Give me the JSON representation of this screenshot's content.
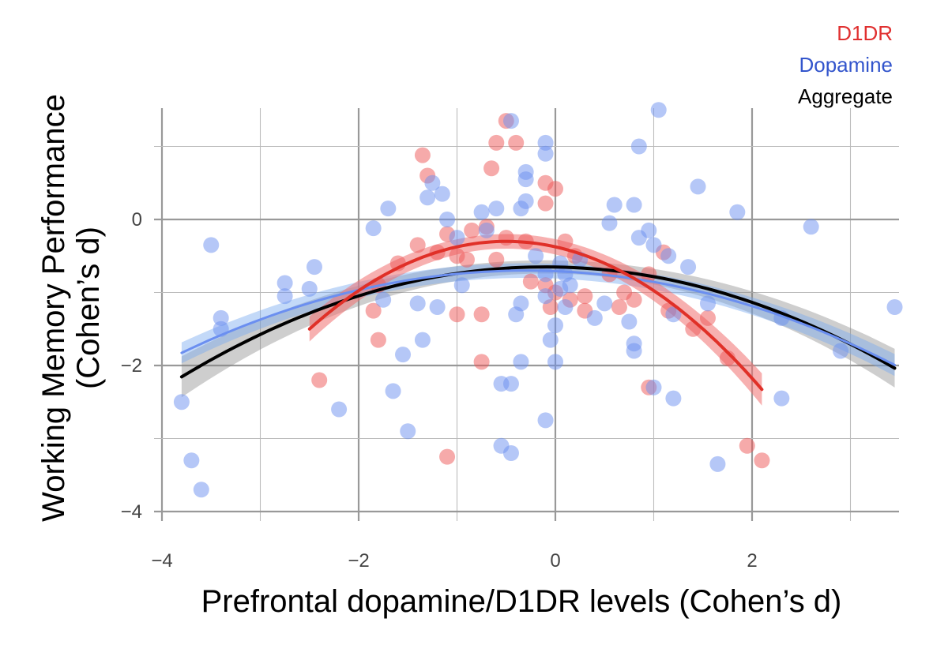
{
  "chart_data": {
    "type": "scatter",
    "title": "",
    "xlabel": "Prefrontal dopamine/D1DR levels (Cohen’s d)",
    "ylabel": [
      "Working Memory Performance",
      "(Cohen’s d)"
    ],
    "xlim": [
      -4,
      3.5
    ],
    "ylim": [
      -4.2,
      1.5
    ],
    "xticks": [
      -4,
      -2,
      0,
      2
    ],
    "xtick_labels": [
      "−4",
      "−2",
      "0",
      "2"
    ],
    "yticks": [
      0,
      -2,
      -4
    ],
    "ytick_labels": [
      "0",
      "−2",
      "−4"
    ],
    "grid": true,
    "legend_position": "top-right",
    "legend": [
      "D1DR",
      "Dopamine",
      "Aggregate"
    ],
    "colors": {
      "D1DR": "#e03030",
      "Dopamine": "#6b8ff0",
      "Aggregate": "#000000"
    },
    "series": [
      {
        "name": "D1DR",
        "kind": "points",
        "points": [
          [
            -0.5,
            1.35
          ],
          [
            -0.6,
            1.05
          ],
          [
            -0.4,
            1.05
          ],
          [
            -0.65,
            0.7
          ],
          [
            -1.35,
            0.88
          ],
          [
            -0.1,
            0.5
          ],
          [
            0,
            0.42
          ],
          [
            -0.1,
            0.22
          ],
          [
            -1.3,
            0.6
          ],
          [
            -0.7,
            -0.1
          ],
          [
            -0.85,
            -0.15
          ],
          [
            -1.1,
            -0.2
          ],
          [
            -0.5,
            -0.25
          ],
          [
            -1.4,
            -0.35
          ],
          [
            -1.2,
            -0.45
          ],
          [
            -0.3,
            -0.3
          ],
          [
            -0.6,
            -0.55
          ],
          [
            -1.0,
            -0.5
          ],
          [
            -0.9,
            -0.55
          ],
          [
            0.1,
            -0.3
          ],
          [
            0.2,
            -0.5
          ],
          [
            -1.6,
            -0.6
          ],
          [
            -1.8,
            -0.9
          ],
          [
            -1.85,
            -1.25
          ],
          [
            -1.8,
            -1.65
          ],
          [
            -1.0,
            -1.3
          ],
          [
            -0.75,
            -1.3
          ],
          [
            -0.1,
            -0.9
          ],
          [
            0,
            -1.0
          ],
          [
            0.15,
            -1.1
          ],
          [
            0.3,
            -1.05
          ],
          [
            0.3,
            -1.25
          ],
          [
            0.7,
            -1.0
          ],
          [
            0.65,
            -1.2
          ],
          [
            0.8,
            -1.1
          ],
          [
            0.95,
            -0.75
          ],
          [
            1.1,
            -0.45
          ],
          [
            1.15,
            -1.25
          ],
          [
            1.4,
            -1.5
          ],
          [
            1.55,
            -1.35
          ],
          [
            1.75,
            -1.9
          ],
          [
            0.95,
            -2.3
          ],
          [
            -0.75,
            -1.95
          ],
          [
            -2.4,
            -2.2
          ],
          [
            -1.1,
            -3.25
          ],
          [
            1.95,
            -3.1
          ],
          [
            2.1,
            -3.3
          ],
          [
            -0.05,
            -1.2
          ],
          [
            -0.25,
            -0.85
          ],
          [
            0.55,
            -0.75
          ]
        ]
      },
      {
        "name": "Dopamine",
        "kind": "points",
        "points": [
          [
            -3.5,
            -0.35
          ],
          [
            -3.8,
            -2.5
          ],
          [
            -3.7,
            -3.3
          ],
          [
            -3.6,
            -3.7
          ],
          [
            -3.4,
            -1.35
          ],
          [
            -3.4,
            -1.5
          ],
          [
            -2.75,
            -0.87
          ],
          [
            -2.75,
            -1.05
          ],
          [
            -2.5,
            -0.95
          ],
          [
            -2.45,
            -0.65
          ],
          [
            -2.2,
            -2.6
          ],
          [
            -1.85,
            -0.12
          ],
          [
            -1.7,
            0.15
          ],
          [
            -1.75,
            -1.1
          ],
          [
            -1.65,
            -2.35
          ],
          [
            -1.55,
            -1.85
          ],
          [
            -1.4,
            -1.15
          ],
          [
            -1.35,
            -1.65
          ],
          [
            -1.5,
            -2.9
          ],
          [
            -1.3,
            0.3
          ],
          [
            -1.25,
            0.5
          ],
          [
            -1.15,
            0.35
          ],
          [
            -1.1,
            0
          ],
          [
            -1.2,
            -1.2
          ],
          [
            -1.0,
            -0.25
          ],
          [
            -0.95,
            -0.9
          ],
          [
            -0.75,
            0.1
          ],
          [
            -0.7,
            -0.15
          ],
          [
            -0.6,
            0.15
          ],
          [
            -0.55,
            -2.25
          ],
          [
            -0.45,
            -2.25
          ],
          [
            -0.45,
            1.35
          ],
          [
            -0.3,
            0.65
          ],
          [
            -0.3,
            0.55
          ],
          [
            -0.35,
            0.15
          ],
          [
            -0.3,
            0.25
          ],
          [
            -0.2,
            -0.5
          ],
          [
            -0.35,
            -1.15
          ],
          [
            -0.4,
            -1.3
          ],
          [
            -0.35,
            -1.95
          ],
          [
            -0.45,
            -3.2
          ],
          [
            -0.55,
            -3.1
          ],
          [
            -0.1,
            1.05
          ],
          [
            -0.1,
            0.9
          ],
          [
            -0.1,
            -0.75
          ],
          [
            -0.1,
            -2.75
          ],
          [
            0,
            -1.95
          ],
          [
            -0.05,
            -1.65
          ],
          [
            0,
            -1.45
          ],
          [
            0.1,
            -1.2
          ],
          [
            0.15,
            -0.9
          ],
          [
            0.1,
            -0.75
          ],
          [
            0.05,
            -0.6
          ],
          [
            0.4,
            -1.35
          ],
          [
            0.5,
            -1.15
          ],
          [
            0.55,
            -0.05
          ],
          [
            0.6,
            0.2
          ],
          [
            0.75,
            -1.4
          ],
          [
            0.8,
            0.2
          ],
          [
            0.85,
            1.0
          ],
          [
            0.85,
            -0.25
          ],
          [
            0.95,
            -0.15
          ],
          [
            0.8,
            -1.7
          ],
          [
            0.8,
            -1.8
          ],
          [
            1.05,
            1.5
          ],
          [
            1.0,
            -0.35
          ],
          [
            1.15,
            -0.5
          ],
          [
            1.2,
            -1.3
          ],
          [
            1.0,
            -2.3
          ],
          [
            1.2,
            -2.45
          ],
          [
            1.35,
            -0.65
          ],
          [
            1.45,
            0.45
          ],
          [
            1.55,
            -1.15
          ],
          [
            1.65,
            -3.35
          ],
          [
            1.85,
            0.1
          ],
          [
            2.3,
            -1.35
          ],
          [
            2.3,
            -2.45
          ],
          [
            2.6,
            -0.1
          ],
          [
            2.9,
            -1.8
          ],
          [
            3.45,
            -1.2
          ],
          [
            -0.1,
            -1.05
          ],
          [
            0.05,
            -0.95
          ],
          [
            0.25,
            -0.55
          ]
        ]
      },
      {
        "name": "D1DR",
        "kind": "fit",
        "x_range": [
          -2.5,
          2.1
        ],
        "quadratic": {
          "a": -0.3,
          "h": -0.5,
          "k": -0.3
        },
        "ci": [
          0.1,
          0.22
        ]
      },
      {
        "name": "Dopamine",
        "kind": "fit",
        "x_range": [
          -3.8,
          3.45
        ],
        "quadratic": {
          "a": -0.092,
          "h": -0.3,
          "k": -0.7
        },
        "ci": [
          0.1,
          0.15
        ]
      },
      {
        "name": "Aggregate",
        "kind": "fit",
        "x_range": [
          -3.8,
          3.45
        ],
        "quadratic": {
          "a": -0.11,
          "h": -0.1,
          "k": -0.65
        },
        "ci": [
          0.09,
          0.28
        ]
      }
    ]
  }
}
